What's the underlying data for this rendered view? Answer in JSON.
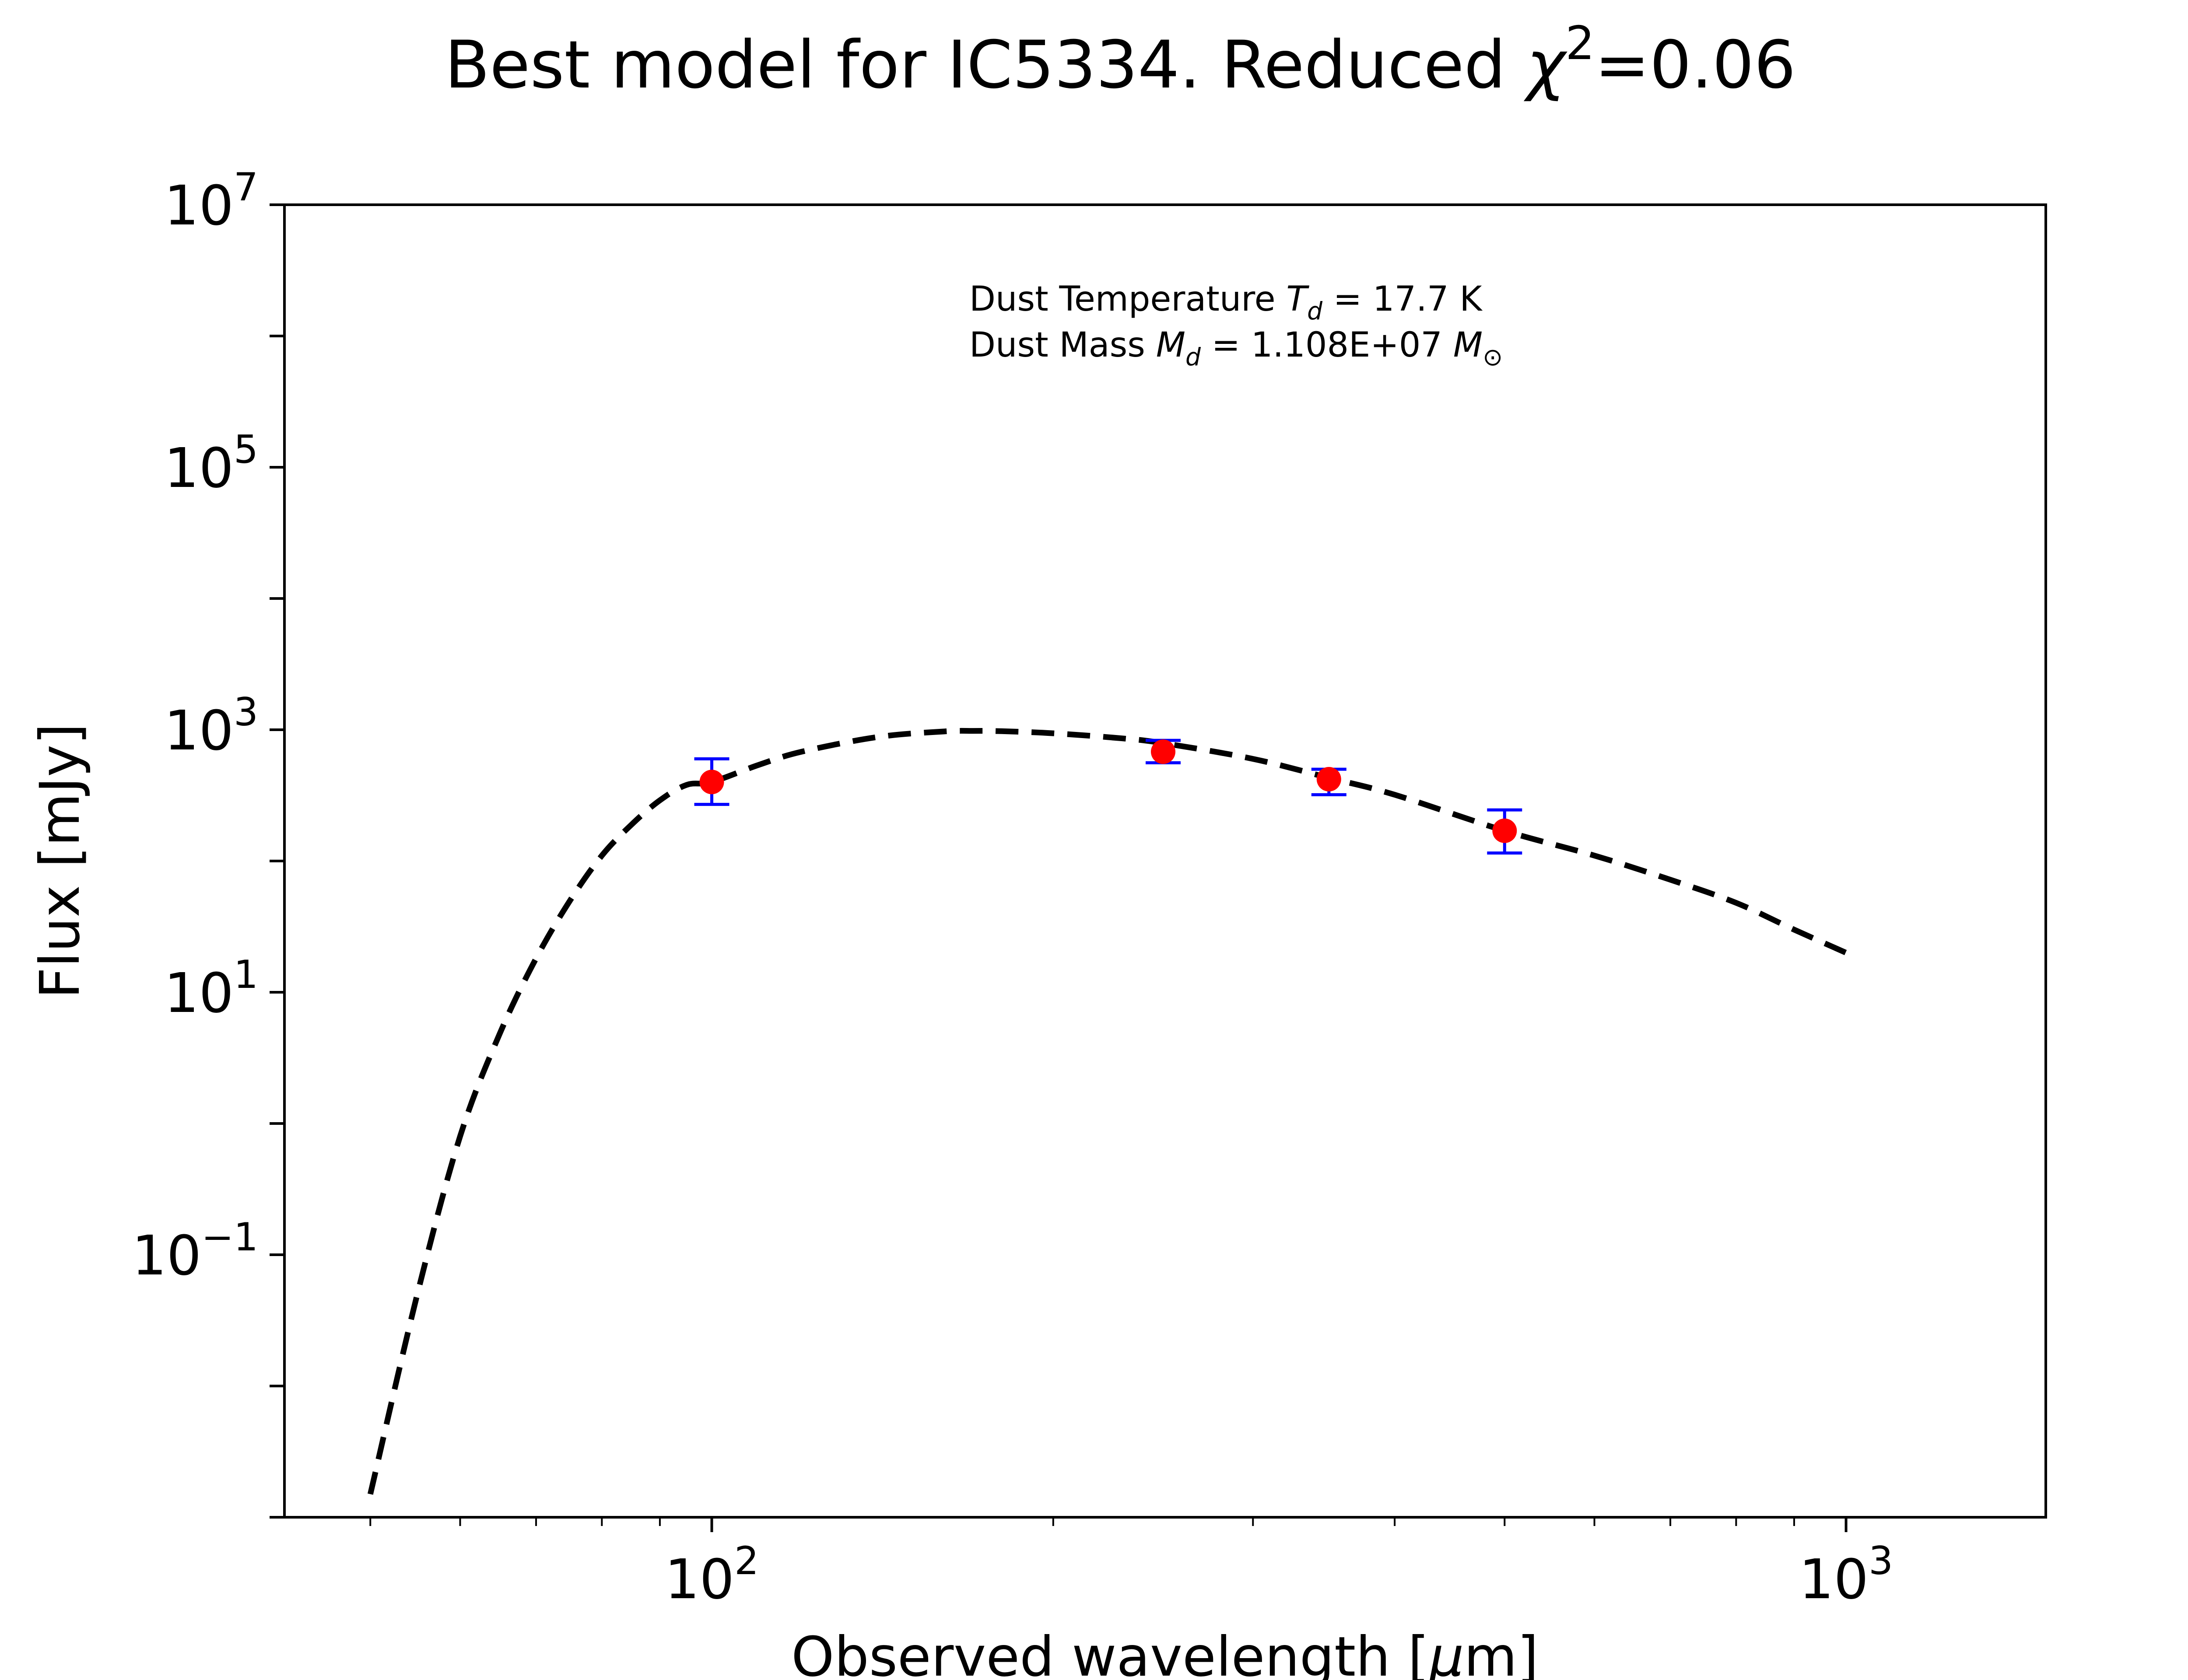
{
  "chart_data": {
    "type": "scatter",
    "title": "Best model for IC5334. Reduced χ²=0.06",
    "title_parts": {
      "prefix": "Best model for IC5334. Reduced ",
      "chi_symbol": "χ",
      "chi_exp": "2",
      "suffix": "=0.06"
    },
    "xlabel": "Observed wavelength [μm]",
    "xlabel_parts": {
      "prefix": "Observed wavelength [",
      "mu": "μ",
      "suffix": "m]"
    },
    "ylabel": "Flux [mJy]",
    "x_scale": "log",
    "y_scale": "log",
    "xlim": [
      42,
      1500
    ],
    "ylim": [
      0.001,
      10000000
    ],
    "x_ticks": [
      {
        "value": 100,
        "base": "10",
        "exp": "2"
      },
      {
        "value": 1000,
        "base": "10",
        "exp": "3"
      }
    ],
    "y_ticks": [
      {
        "value": 0.1,
        "base": "10",
        "exp": "−1"
      },
      {
        "value": 10,
        "base": "10",
        "exp": "1"
      },
      {
        "value": 1000,
        "base": "10",
        "exp": "3"
      },
      {
        "value": 100000,
        "base": "10",
        "exp": "5"
      },
      {
        "value": 10000000,
        "base": "10",
        "exp": "7"
      }
    ],
    "annotation": {
      "line1_prefix": "Dust Temperature ",
      "line1_sym": "T",
      "line1_sub": "d",
      "line1_suffix": " = 17.7 K",
      "line2_prefix": "Dust Mass ",
      "line2_sym": "M",
      "line2_sub": "d",
      "line2_mid": " = 1.108E+07 ",
      "line2_sym2": "M",
      "line2_sub2": "⊙"
    },
    "model": {
      "style": "dashed",
      "color": "#000000",
      "points": [
        [
          50,
          0.0015
        ],
        [
          55,
          0.05
        ],
        [
          60,
          0.8
        ],
        [
          65,
          4.8
        ],
        [
          70,
          18.1
        ],
        [
          75,
          50
        ],
        [
          80,
          110
        ],
        [
          85,
          190
        ],
        [
          90,
          290
        ],
        [
          95,
          380
        ],
        [
          100,
          400
        ],
        [
          110,
          540
        ],
        [
          120,
          680
        ],
        [
          140,
          880
        ],
        [
          160,
          970
        ],
        [
          170,
          980
        ],
        [
          180,
          975
        ],
        [
          200,
          940
        ],
        [
          230,
          860
        ],
        [
          250,
          790
        ],
        [
          300,
          600
        ],
        [
          350,
          430
        ],
        [
          400,
          320
        ],
        [
          500,
          170
        ],
        [
          600,
          110
        ],
        [
          700,
          72
        ],
        [
          800,
          48
        ],
        [
          900,
          30
        ],
        [
          1000,
          20
        ]
      ]
    },
    "observations": {
      "marker_color": "#ff0000",
      "errorbar_color": "#0000ff",
      "points": [
        {
          "x": 100,
          "y": 400,
          "y_low": 270,
          "y_high": 600
        },
        {
          "x": 250,
          "y": 680,
          "y_low": 560,
          "y_high": 830
        },
        {
          "x": 350,
          "y": 420,
          "y_low": 320,
          "y_high": 500
        },
        {
          "x": 500,
          "y": 170,
          "y_low": 115,
          "y_high": 245
        }
      ]
    },
    "grid": false,
    "legend": "none"
  }
}
